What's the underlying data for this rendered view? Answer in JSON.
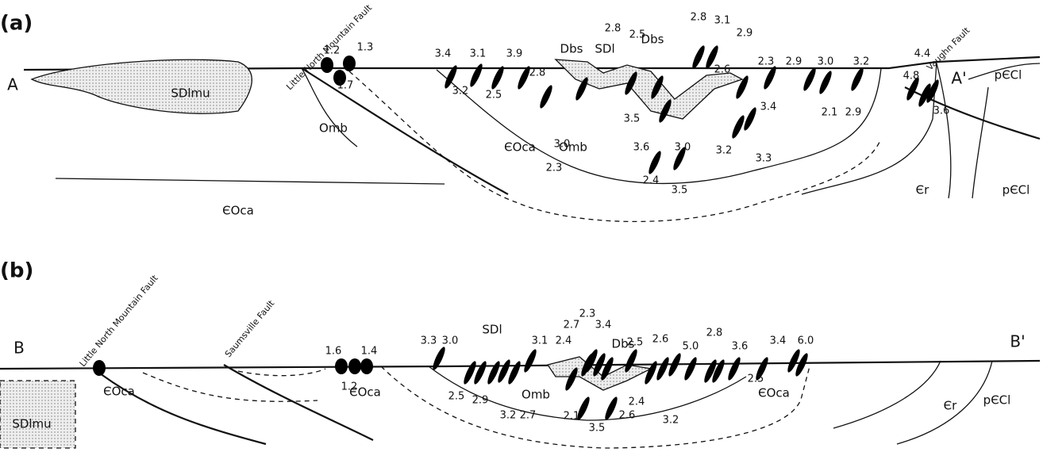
{
  "panels": [
    {
      "label": "(a)",
      "section_start": "A",
      "section_end": "A'",
      "faults": [
        "Little North Mountain Fault",
        "Vaughn Fault"
      ],
      "units": [
        "SDlmu",
        "Omb",
        "ЄOca",
        "Dbs",
        "SDl",
        "Dbs",
        "ЄOca",
        "Omb",
        "Єr",
        "pЄCl",
        "pЄCl"
      ],
      "values": [
        "1.2",
        "1.3",
        "1.7",
        "3.4",
        "3.2",
        "3.1",
        "2.5",
        "3.9",
        "2.8",
        "2.3",
        "3.0",
        "2.8",
        "2.5",
        "3.5",
        "3.6",
        "2.4",
        "3.0",
        "3.5",
        "2.8",
        "3.1",
        "2.9",
        "2.6",
        "2.3",
        "2.9",
        "3.4",
        "3.2",
        "3.3",
        "2.1",
        "3.0",
        "2.9",
        "3.2",
        "4.8",
        "4.4",
        "3.6"
      ]
    },
    {
      "label": "(b)",
      "section_start": "B",
      "section_end": "B'",
      "faults": [
        "Little North Mountain Fault",
        "Saumsville Fault"
      ],
      "units": [
        "SDlmu",
        "ЄOca",
        "ЄOca",
        "SDl",
        "Omb",
        "Dbs",
        "ЄOca",
        "Єr",
        "pЄCl"
      ],
      "values": [
        "1.6",
        "1.4",
        "1.2",
        "3.3",
        "3.0",
        "2.5",
        "2.9",
        "3.2",
        "2.7",
        "3.1",
        "2.4",
        "2.7",
        "2.3",
        "3.4",
        "2.1",
        "3.5",
        "2.6",
        "2.4",
        "2.5",
        "2.6",
        "3.2",
        "5.0",
        "2.8",
        "3.6",
        "2.5",
        "3.4",
        "6.0"
      ]
    }
  ]
}
